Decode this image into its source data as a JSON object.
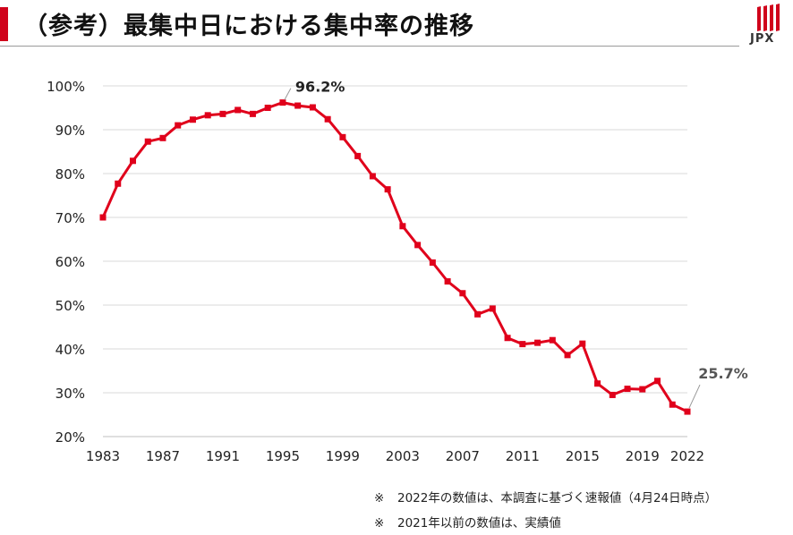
{
  "header": {
    "title": "（参考）最集中日における集中率の推移",
    "logo_text": "JPX",
    "accent_color": "#d0021b"
  },
  "chart_data": {
    "type": "line",
    "x": [
      1983,
      1984,
      1985,
      1986,
      1987,
      1988,
      1989,
      1990,
      1991,
      1992,
      1993,
      1994,
      1995,
      1996,
      1997,
      1998,
      1999,
      2000,
      2001,
      2002,
      2003,
      2004,
      2005,
      2006,
      2007,
      2008,
      2009,
      2010,
      2011,
      2012,
      2013,
      2014,
      2015,
      2016,
      2017,
      2018,
      2019,
      2020,
      2021,
      2022
    ],
    "values": [
      70.0,
      77.7,
      82.9,
      87.3,
      88.1,
      91.0,
      92.3,
      93.3,
      93.6,
      94.5,
      93.6,
      95.0,
      96.2,
      95.5,
      95.1,
      92.4,
      88.3,
      84.0,
      79.4,
      76.4,
      68.0,
      63.7,
      59.7,
      55.4,
      52.7,
      47.9,
      49.2,
      42.5,
      41.1,
      41.4,
      42.0,
      38.6,
      41.2,
      32.1,
      29.5,
      30.9,
      30.8,
      32.7,
      27.3,
      25.7
    ],
    "x_tick_labels": [
      "1983",
      "1987",
      "1991",
      "1995",
      "1999",
      "2003",
      "2007",
      "2011",
      "2015",
      "2019",
      "2022"
    ],
    "y_tick_labels": [
      "20%",
      "30%",
      "40%",
      "50%",
      "60%",
      "70%",
      "80%",
      "90%",
      "100%"
    ],
    "ylim": [
      20,
      100
    ],
    "xlim": [
      1983,
      2022
    ],
    "grid": "horizontal",
    "line_color": "#e0001b",
    "annotations": [
      {
        "x": 1995,
        "y": 96.2,
        "text": "96.2%"
      },
      {
        "x": 2022,
        "y": 25.7,
        "text": "25.7%"
      }
    ]
  },
  "notes": [
    {
      "mark": "※",
      "text": "2022年の数値は、本調査に基づく速報値（4月24日時点）"
    },
    {
      "mark": "※",
      "text": "2021年以前の数値は、実績値"
    }
  ]
}
